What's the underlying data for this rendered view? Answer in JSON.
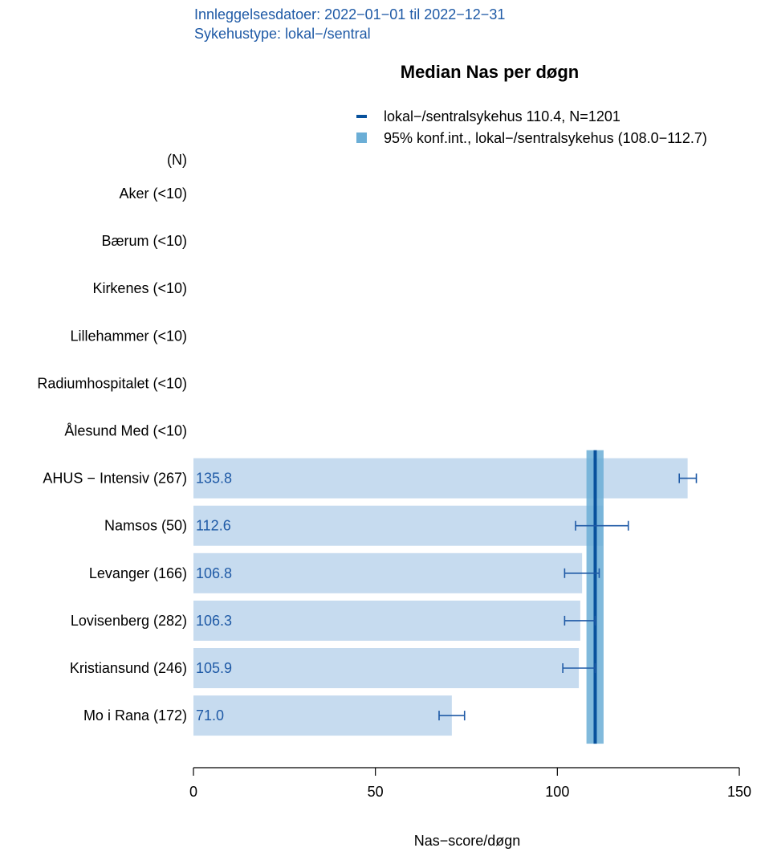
{
  "chart_data": {
    "type": "bar",
    "orientation": "horizontal",
    "subtitle_lines": [
      "Innleggelsesdatoer: 2022−01−01 til 2022−12−31",
      "Sykehustype: lokal−/sentral"
    ],
    "title": "Median Nas per døgn",
    "xlabel": "Nas−score/døgn",
    "n_header": "(N)",
    "xlim": [
      0,
      150
    ],
    "xticks": [
      0,
      50,
      100,
      150
    ],
    "reference": {
      "value": 110.4,
      "ci": [
        108.0,
        112.7
      ],
      "legend_line": "lokal−/sentralsykehus 110.4, N=1201",
      "legend_ci": "95% konf.int., lokal−/sentralsykehus (108.0−112.7)"
    },
    "categories": [
      {
        "label": "Aker (<10)",
        "value": null,
        "value_label": "",
        "ci": null
      },
      {
        "label": "Bærum (<10)",
        "value": null,
        "value_label": "",
        "ci": null
      },
      {
        "label": "Kirkenes (<10)",
        "value": null,
        "value_label": "",
        "ci": null
      },
      {
        "label": "Lillehammer (<10)",
        "value": null,
        "value_label": "",
        "ci": null
      },
      {
        "label": "Radiumhospitalet (<10)",
        "value": null,
        "value_label": "",
        "ci": null
      },
      {
        "label": "Ålesund Med (<10)",
        "value": null,
        "value_label": "",
        "ci": null
      },
      {
        "label": "AHUS − Intensiv (267)",
        "value": 135.8,
        "value_label": "135.8",
        "ci": [
          133.5,
          138.2
        ]
      },
      {
        "label": "Namsos (50)",
        "value": 112.6,
        "value_label": "112.6",
        "ci": [
          105.0,
          119.5
        ]
      },
      {
        "label": "Levanger (166)",
        "value": 106.8,
        "value_label": "106.8",
        "ci": [
          102.0,
          111.5
        ]
      },
      {
        "label": "Lovisenberg (282)",
        "value": 106.3,
        "value_label": "106.3",
        "ci": [
          102.0,
          110.4
        ]
      },
      {
        "label": "Kristiansund (246)",
        "value": 105.9,
        "value_label": "105.9",
        "ci": [
          101.5,
          110.4
        ]
      },
      {
        "label": "Mo i Rana (172)",
        "value": 71.0,
        "value_label": "71.0",
        "ci": [
          67.5,
          74.5
        ]
      }
    ],
    "colors": {
      "bar": "#c6dbef",
      "text": "#1f5aa6",
      "errorbar": "#1f5aa6",
      "ref_line": "#08519c",
      "ci_band": "#6baed6"
    }
  }
}
